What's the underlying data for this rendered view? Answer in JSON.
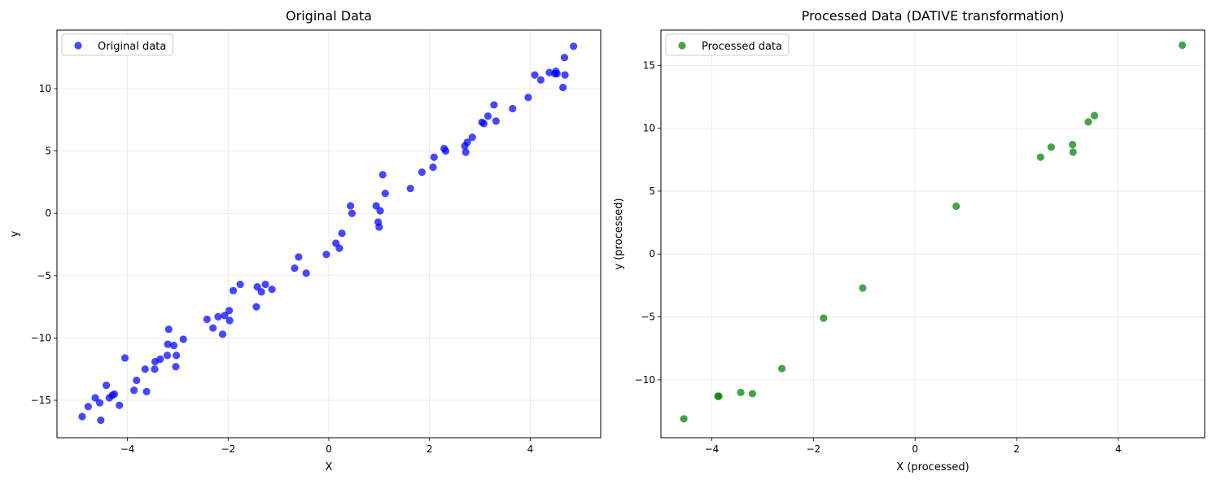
{
  "chart_data": [
    {
      "type": "scatter",
      "title": "Original Data",
      "xlabel": "X",
      "ylabel": "y",
      "xlim": [
        -5.4,
        5.4
      ],
      "ylim": [
        -18.0,
        14.7
      ],
      "xticks": [
        -4,
        -2,
        0,
        2,
        4
      ],
      "xtick_labels": [
        "−4",
        "−2",
        "0",
        "2",
        "4"
      ],
      "yticks": [
        -15,
        -10,
        -5,
        0,
        5,
        10
      ],
      "ytick_labels": [
        "−15",
        "−10",
        "−5",
        "0",
        "5",
        "10"
      ],
      "grid": true,
      "legend_position": "top-left",
      "series": [
        {
          "name": "Original data",
          "color": "#0000ff",
          "points": [
            [
              -4.9,
              -16.3
            ],
            [
              -4.78,
              -15.5
            ],
            [
              -4.64,
              -14.8
            ],
            [
              -4.55,
              -15.2
            ],
            [
              -4.53,
              -16.6
            ],
            [
              -4.42,
              -13.8
            ],
            [
              -4.36,
              -14.8
            ],
            [
              -4.3,
              -14.6
            ],
            [
              -4.26,
              -14.5
            ],
            [
              -4.16,
              -15.4
            ],
            [
              -4.05,
              -11.6
            ],
            [
              -3.87,
              -14.2
            ],
            [
              -3.82,
              -13.4
            ],
            [
              -3.65,
              -12.5
            ],
            [
              -3.62,
              -14.3
            ],
            [
              -3.46,
              -12.5
            ],
            [
              -3.45,
              -11.9
            ],
            [
              -3.35,
              -11.7
            ],
            [
              -3.21,
              -11.4
            ],
            [
              -3.2,
              -10.5
            ],
            [
              -3.18,
              -9.3
            ],
            [
              -3.08,
              -10.6
            ],
            [
              -3.04,
              -12.3
            ],
            [
              -3.03,
              -11.4
            ],
            [
              -2.89,
              -10.1
            ],
            [
              -2.42,
              -8.5
            ],
            [
              -2.3,
              -9.2
            ],
            [
              -2.2,
              -8.3
            ],
            [
              -2.11,
              -9.7
            ],
            [
              -2.07,
              -8.2
            ],
            [
              -1.98,
              -7.8
            ],
            [
              -1.97,
              -8.6
            ],
            [
              -1.9,
              -6.2
            ],
            [
              -1.76,
              -5.7
            ],
            [
              -1.44,
              -7.5
            ],
            [
              -1.42,
              -5.9
            ],
            [
              -1.34,
              -6.3
            ],
            [
              -1.26,
              -5.7
            ],
            [
              -1.13,
              -6.1
            ],
            [
              -0.68,
              -4.4
            ],
            [
              -0.6,
              -3.5
            ],
            [
              -0.45,
              -4.8
            ],
            [
              -0.05,
              -3.3
            ],
            [
              0.14,
              -2.4
            ],
            [
              0.21,
              -2.8
            ],
            [
              0.26,
              -1.6
            ],
            [
              0.43,
              0.6
            ],
            [
              0.46,
              0.0
            ],
            [
              0.94,
              0.6
            ],
            [
              0.98,
              -0.7
            ],
            [
              1.0,
              -1.1
            ],
            [
              1.02,
              0.2
            ],
            [
              1.07,
              3.1
            ],
            [
              1.12,
              1.6
            ],
            [
              1.62,
              2.0
            ],
            [
              1.85,
              3.3
            ],
            [
              2.07,
              3.7
            ],
            [
              2.09,
              4.5
            ],
            [
              2.29,
              5.2
            ],
            [
              2.32,
              5.0
            ],
            [
              2.7,
              5.4
            ],
            [
              2.72,
              4.9
            ],
            [
              2.75,
              5.7
            ],
            [
              2.85,
              6.1
            ],
            [
              3.04,
              7.3
            ],
            [
              3.08,
              7.2
            ],
            [
              3.16,
              7.8
            ],
            [
              3.28,
              8.7
            ],
            [
              3.32,
              7.4
            ],
            [
              3.65,
              8.4
            ],
            [
              3.96,
              9.3
            ],
            [
              4.09,
              11.1
            ],
            [
              4.21,
              10.7
            ],
            [
              4.38,
              11.3
            ],
            [
              4.49,
              11.2
            ],
            [
              4.51,
              11.4
            ],
            [
              4.53,
              11.2
            ],
            [
              4.65,
              10.1
            ],
            [
              4.68,
              12.5
            ],
            [
              4.69,
              11.1
            ],
            [
              4.86,
              13.4
            ]
          ]
        }
      ]
    },
    {
      "type": "scatter",
      "title": "Processed Data (DATIVE transformation)",
      "xlabel": "X (processed)",
      "ylabel": "y (processed)",
      "xlim": [
        -5.0,
        5.7
      ],
      "ylim": [
        -14.6,
        17.8
      ],
      "xticks": [
        -4,
        -2,
        0,
        2,
        4
      ],
      "xtick_labels": [
        "−4",
        "−2",
        "0",
        "2",
        "4"
      ],
      "yticks": [
        -10,
        -5,
        0,
        5,
        10,
        15
      ],
      "ytick_labels": [
        "−10",
        "−5",
        "0",
        "5",
        "10",
        "15"
      ],
      "grid": true,
      "legend_position": "top-left",
      "series": [
        {
          "name": "Processed data",
          "color": "#008000",
          "points": [
            [
              -4.55,
              -13.1
            ],
            [
              -3.88,
              -11.3
            ],
            [
              -3.86,
              -11.3
            ],
            [
              -3.43,
              -11.0
            ],
            [
              -3.2,
              -11.1
            ],
            [
              -2.62,
              -9.1
            ],
            [
              -1.8,
              -5.1
            ],
            [
              -1.03,
              -2.7
            ],
            [
              0.81,
              3.8
            ],
            [
              2.47,
              7.7
            ],
            [
              2.68,
              8.5
            ],
            [
              3.1,
              8.7
            ],
            [
              3.11,
              8.1
            ],
            [
              3.41,
              10.5
            ],
            [
              3.53,
              11.0
            ],
            [
              5.26,
              16.6
            ]
          ]
        }
      ]
    }
  ]
}
